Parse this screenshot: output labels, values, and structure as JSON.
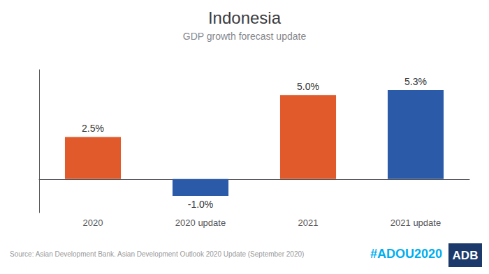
{
  "chart_data": {
    "type": "bar",
    "title": "Indonesia",
    "subtitle": "GDP growth forecast update",
    "categories": [
      "2020",
      "2020 update",
      "2021",
      "2021 update"
    ],
    "values": [
      2.5,
      -1.0,
      5.0,
      5.3
    ],
    "value_labels": [
      "2.5%",
      "-1.0%",
      "5.0%",
      "5.3%"
    ],
    "data_labels": true,
    "colors": [
      "#E05A2B",
      "#2B5BA8",
      "#E05A2B",
      "#2B5BA8"
    ],
    "ylim": [
      -2.0,
      6.5
    ],
    "tick_labels": "x",
    "grid": false,
    "annotations": [
      {
        "text": "Source: Asian Development Bank. Asian Development Outlook 2020 Update (September 2020)",
        "color": "#999999"
      },
      {
        "text": "#ADOU2020",
        "color": "#00AEEF"
      },
      {
        "text": "ADB",
        "color": "#1B3A6B"
      }
    ]
  }
}
